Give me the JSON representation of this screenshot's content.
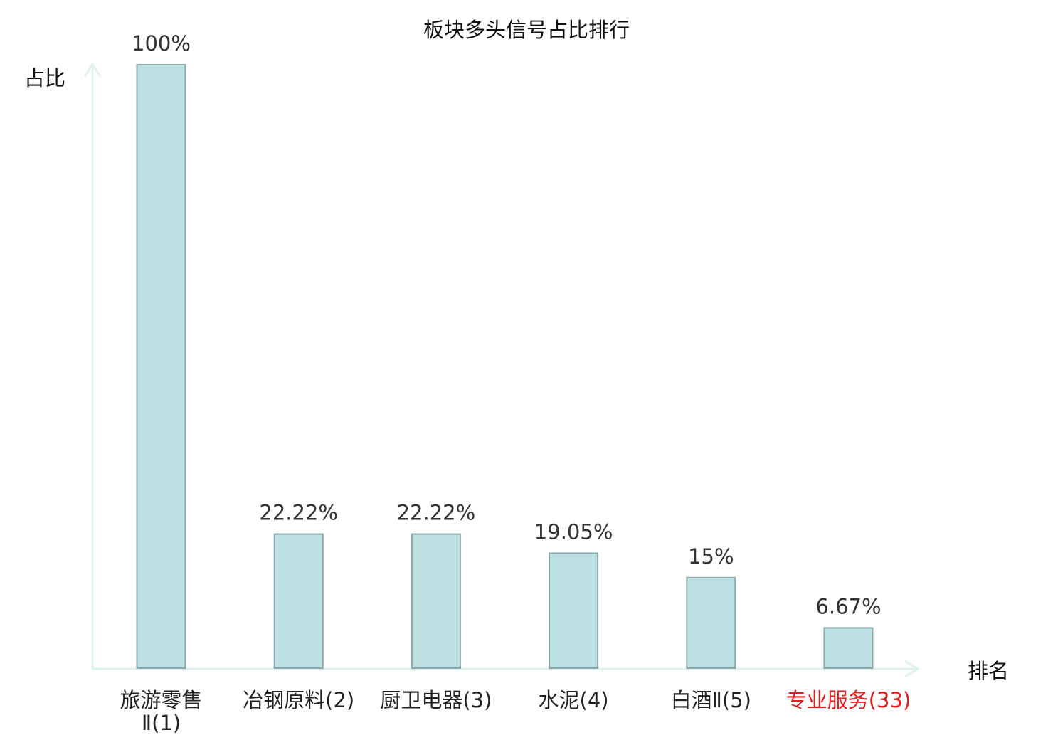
{
  "chart_data": {
    "type": "bar",
    "title": "板块多头信号占比排行",
    "ylabel": "占比",
    "xlabel": "排名",
    "ylim": [
      0,
      100
    ],
    "categories": [
      [
        "旅游零售",
        "Ⅱ(1)"
      ],
      [
        "冶钢原料(2)"
      ],
      [
        "厨卫电器(3)"
      ],
      [
        "水泥(4)"
      ],
      [
        "白酒Ⅱ(5)"
      ],
      [
        "专业服务(33)"
      ]
    ],
    "values": [
      100,
      22.22,
      22.22,
      19.05,
      15,
      6.67
    ],
    "value_labels": [
      "100%",
      "22.22%",
      "22.22%",
      "19.05%",
      "15%",
      "6.67%"
    ],
    "highlight_index": 5,
    "colors": {
      "bar_fill": "#bde0e3",
      "bar_stroke": "#8aa7ab",
      "axis": "#dff2f0",
      "label_default": "#222222",
      "label_highlight": "#e41a1c"
    }
  }
}
